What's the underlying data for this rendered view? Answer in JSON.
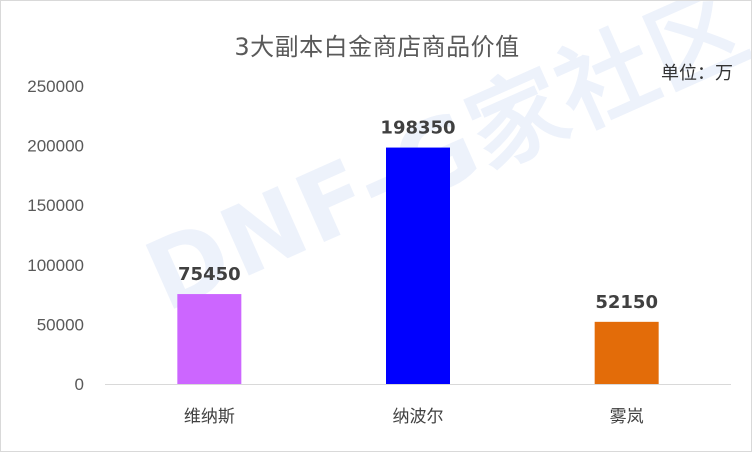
{
  "chart_data": {
    "type": "bar",
    "title": "3大副本白金商店商品价值",
    "unit_note": "单位：万",
    "watermark": "DNF-G家社区",
    "categories": [
      "维纳斯",
      "纳波尔",
      "雾岚"
    ],
    "values": [
      75450,
      198350,
      52150
    ],
    "data_labels": [
      "75450",
      "198350",
      "52150"
    ],
    "colors": [
      "#cc66ff",
      "#0000ff",
      "#e36c09"
    ],
    "ylim": [
      0,
      250000
    ],
    "yticks": [
      "0",
      "50000",
      "100000",
      "150000",
      "200000",
      "250000"
    ],
    "grid": false,
    "legend": "none",
    "xlabel": "",
    "ylabel": ""
  }
}
